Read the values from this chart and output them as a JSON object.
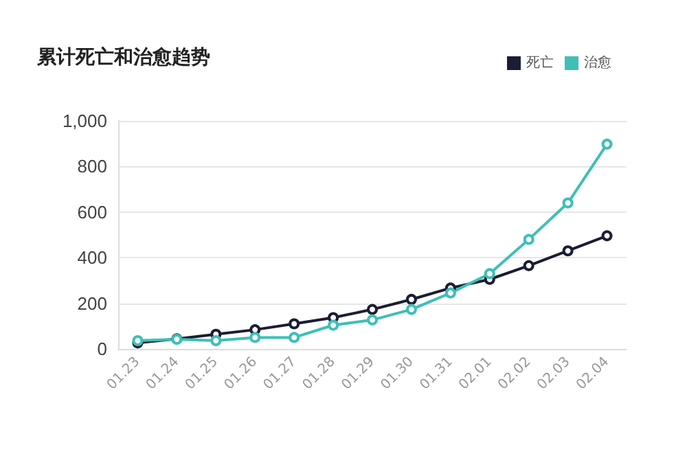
{
  "chart_data": {
    "type": "line",
    "title": "累计死亡和治愈趋势",
    "categories": [
      "01.23",
      "01.24",
      "01.25",
      "01.26",
      "01.27",
      "01.28",
      "01.29",
      "01.30",
      "01.31",
      "02.01",
      "02.02",
      "02.03",
      "02.04"
    ],
    "series": [
      {
        "name": "死亡",
        "color": "#1b1d33",
        "values": [
          26,
          44,
          64,
          84,
          110,
          137,
          173,
          217,
          267,
          305,
          365,
          430,
          496
        ]
      },
      {
        "name": "治愈",
        "color": "#3dbfb8",
        "values": [
          36,
          42,
          36,
          50,
          50,
          104,
          127,
          173,
          245,
          330,
          480,
          640,
          898
        ]
      }
    ],
    "ylim": [
      0,
      1000
    ],
    "yticks": [
      0,
      200,
      400,
      600,
      800,
      {
        "value": 1000,
        "label": "1,000"
      }
    ],
    "grid": "y",
    "legend": "top right",
    "marker": "circle",
    "line_style": "solid"
  }
}
